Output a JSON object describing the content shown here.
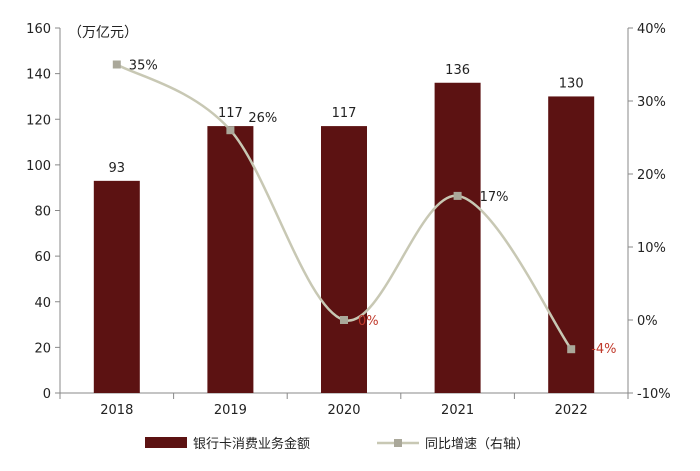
{
  "chart_data": {
    "type": "bar+line",
    "unit_label": "（万亿元）",
    "categories": [
      "2018",
      "2019",
      "2020",
      "2021",
      "2022"
    ],
    "series": [
      {
        "name": "银行卡消费业务金额",
        "type": "bar",
        "axis": "left",
        "color": "#5c1212",
        "values": [
          93,
          117,
          117,
          136,
          130
        ],
        "labels": [
          "93",
          "117",
          "117",
          "136",
          "130"
        ]
      },
      {
        "name": "同比增速（右轴）",
        "type": "line",
        "axis": "right",
        "color": "#c8c8b4",
        "values": [
          35,
          26,
          0,
          17,
          -4
        ],
        "labels": [
          "35%",
          "26%",
          "0%",
          "17%",
          "-4%"
        ]
      }
    ],
    "left_axis": {
      "min": 0,
      "max": 160,
      "step": 20,
      "ticks": [
        "0",
        "20",
        "40",
        "60",
        "80",
        "100",
        "120",
        "140",
        "160"
      ]
    },
    "right_axis": {
      "min": -10,
      "max": 40,
      "step": 10,
      "ticks": [
        "-10%",
        "0%",
        "10%",
        "20%",
        "30%",
        "40%"
      ]
    },
    "grid": false,
    "legend_position": "bottom"
  }
}
